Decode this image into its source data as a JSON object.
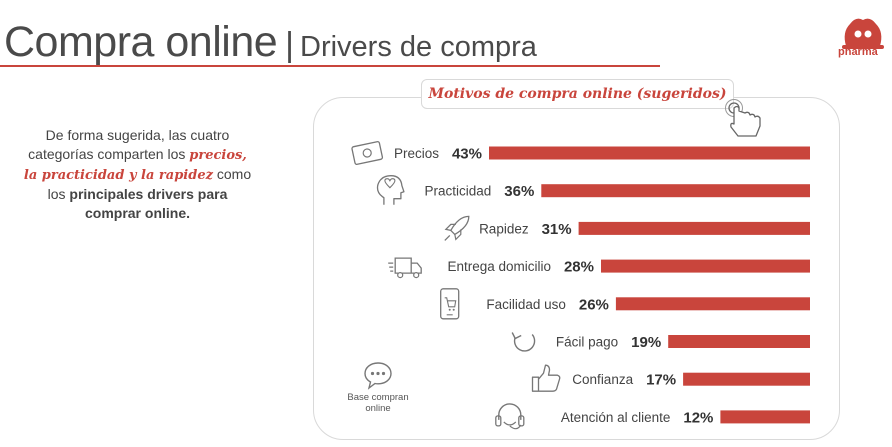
{
  "header": {
    "title": "Compra online",
    "separator": "|",
    "subtitle": "Drivers de compra",
    "logo_text": "pharma"
  },
  "intro": {
    "part1": "De forma sugerida, las cuatro categorías comparten los ",
    "highlight": "precios, la practicidad y la rapidez",
    "part2": " como los ",
    "bold": "principales drivers para comprar online."
  },
  "panel": {
    "title": "Motivos de compra online (sugeridos)",
    "base_note": "Base compran online"
  },
  "colors": {
    "accent": "#c9453c",
    "bar": "#c9453c",
    "text": "#444444",
    "border": "#d9d9d9"
  },
  "chart_data": {
    "type": "bar",
    "orientation": "horizontal",
    "title": "Motivos de compra online (sugeridos)",
    "categories": [
      "Precios",
      "Practicidad",
      "Rapidez",
      "Entrega domicilio",
      "Facilidad uso",
      "Fácil pago",
      "Confianza",
      "Atención al cliente"
    ],
    "values": [
      43,
      36,
      31,
      28,
      26,
      19,
      17,
      12
    ],
    "labels": [
      "43%",
      "36%",
      "31%",
      "28%",
      "26%",
      "19%",
      "17%",
      "12%"
    ],
    "icons": [
      "money-icon",
      "head-heart-icon",
      "rocket-icon",
      "delivery-truck-icon",
      "phone-cart-icon",
      "refresh-icon",
      "thumbs-up-icon",
      "headset-icon"
    ],
    "unit": "%",
    "bar_alignment": "right",
    "grid": false,
    "legend": "none"
  }
}
